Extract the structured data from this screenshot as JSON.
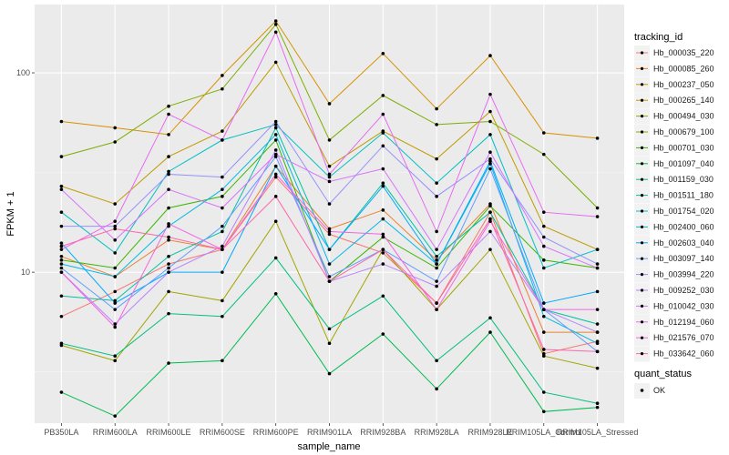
{
  "chart_data": {
    "type": "line",
    "xlabel": "sample_name",
    "ylabel": "FPKM + 1",
    "y_scale": "log10",
    "ylim": [
      1.75,
      220
    ],
    "y_ticks": [
      10,
      100
    ],
    "y_tick_labels": [
      "10",
      "100"
    ],
    "grid": true,
    "legend_placement": "right",
    "categories": [
      "PB350LA",
      "RRIM600LA",
      "RRIM600LE",
      "RRIM600SE",
      "RRIM600PE",
      "RRIM901LA",
      "RRIM928BA",
      "RRIM928LA",
      "RRIM928LE",
      "RRIM105LA_Control",
      "RRIM105LA_Stressed"
    ],
    "legend_title": "tracking_id",
    "legend_title_2": "quant_status",
    "legend_2_entries": [
      "OK"
    ],
    "series": [
      {
        "name": "Hb_000035_220",
        "color": "#F8766D",
        "values": [
          6.0,
          8.0,
          11.0,
          13.0,
          30.0,
          15.5,
          12.5,
          7.0,
          20.0,
          3.9,
          4.5
        ]
      },
      {
        "name": "Hb_000085_260",
        "color": "#EA8331",
        "values": [
          12.0,
          9.5,
          14.5,
          13.0,
          34.0,
          16.5,
          20.5,
          11.5,
          22.0,
          5.0,
          5.0
        ]
      },
      {
        "name": "Hb_000237_050",
        "color": "#D89000",
        "values": [
          57.0,
          53.0,
          49.0,
          97.0,
          182.0,
          70.0,
          125.0,
          66.0,
          122.0,
          50.0,
          47.0
        ]
      },
      {
        "name": "Hb_000265_140",
        "color": "#C09B00",
        "values": [
          27.0,
          22.0,
          38.0,
          51.0,
          113.0,
          34.0,
          51.0,
          37.0,
          64.0,
          17.0,
          13.0
        ]
      },
      {
        "name": "Hb_000494_030",
        "color": "#A3A500",
        "values": [
          4.3,
          3.6,
          8.0,
          7.2,
          18.0,
          4.4,
          13.0,
          6.5,
          13.0,
          3.8,
          3.3
        ]
      },
      {
        "name": "Hb_000679_100",
        "color": "#7CAE00",
        "values": [
          38.0,
          45.0,
          68.0,
          83.0,
          175.0,
          46.0,
          77.0,
          55.0,
          57.0,
          39.0,
          21.0
        ]
      },
      {
        "name": "Hb_000701_030",
        "color": "#39B600",
        "values": [
          11.5,
          10.5,
          21.0,
          24.0,
          46.0,
          9.0,
          15.0,
          10.5,
          21.5,
          11.5,
          10.5
        ]
      },
      {
        "name": "Hb_001097_040",
        "color": "#00BB4E",
        "values": [
          2.5,
          1.9,
          3.5,
          3.6,
          7.8,
          3.1,
          4.9,
          2.6,
          5.0,
          2.0,
          2.1
        ]
      },
      {
        "name": "Hb_001159_030",
        "color": "#00BF7D",
        "values": [
          4.4,
          3.8,
          6.2,
          6.0,
          11.8,
          5.2,
          7.6,
          3.6,
          5.9,
          2.5,
          2.2
        ]
      },
      {
        "name": "Hb_001511_180",
        "color": "#00C1A3",
        "values": [
          7.6,
          7.2,
          12.0,
          16.0,
          53.0,
          13.0,
          28.0,
          12.0,
          20.0,
          6.5,
          5.5
        ]
      },
      {
        "name": "Hb_001754_020",
        "color": "#00BFC4",
        "values": [
          20.0,
          12.5,
          32.0,
          46.0,
          55.0,
          30.0,
          50.0,
          28.0,
          49.0,
          10.5,
          13.0
        ]
      },
      {
        "name": "Hb_002400_060",
        "color": "#00B8E7",
        "values": [
          11.0,
          9.5,
          17.0,
          26.0,
          49.0,
          11.0,
          18.5,
          11.0,
          35.0,
          6.0,
          4.4
        ]
      },
      {
        "name": "Hb_002603_040",
        "color": "#00A9FF",
        "values": [
          14.0,
          7.0,
          10.0,
          10.0,
          34.0,
          13.0,
          27.0,
          11.0,
          36.0,
          7.0,
          8.0
        ]
      },
      {
        "name": "Hb_003097_140",
        "color": "#619CFF",
        "values": [
          10.5,
          6.5,
          10.5,
          17.0,
          38.0,
          9.5,
          13.0,
          9.0,
          33.0,
          6.5,
          4.0
        ]
      },
      {
        "name": "Hb_003994_220",
        "color": "#9590FF",
        "values": [
          17.0,
          17.0,
          31.0,
          30.0,
          57.0,
          22.0,
          43.0,
          24.0,
          37.0,
          15.0,
          11.0
        ]
      },
      {
        "name": "Hb_009252_030",
        "color": "#B983FF",
        "values": [
          10.0,
          5.5,
          10.0,
          13.5,
          41.0,
          9.0,
          11.0,
          8.5,
          16.0,
          6.5,
          5.0
        ]
      },
      {
        "name": "Hb_010042_030",
        "color": "#D575FE",
        "values": [
          26.0,
          14.5,
          26.0,
          21.0,
          39.0,
          28.5,
          33.0,
          13.0,
          40.0,
          13.5,
          10.5
        ]
      },
      {
        "name": "Hb_012194_060",
        "color": "#E76BF3",
        "values": [
          13.0,
          18.0,
          62.0,
          46.0,
          160.0,
          31.0,
          62.0,
          16.0,
          78.0,
          20.0,
          19.0
        ]
      },
      {
        "name": "Hb_021576_070",
        "color": "#F564E3",
        "values": [
          10.0,
          5.3,
          17.5,
          13.0,
          31.0,
          16.0,
          15.5,
          6.5,
          18.0,
          6.5,
          6.5
        ]
      },
      {
        "name": "Hb_033642_060",
        "color": "#FF65AC",
        "values": [
          13.5,
          16.5,
          15.0,
          13.0,
          24.0,
          9.0,
          13.0,
          7.0,
          18.5,
          4.1,
          4.0
        ]
      }
    ]
  }
}
